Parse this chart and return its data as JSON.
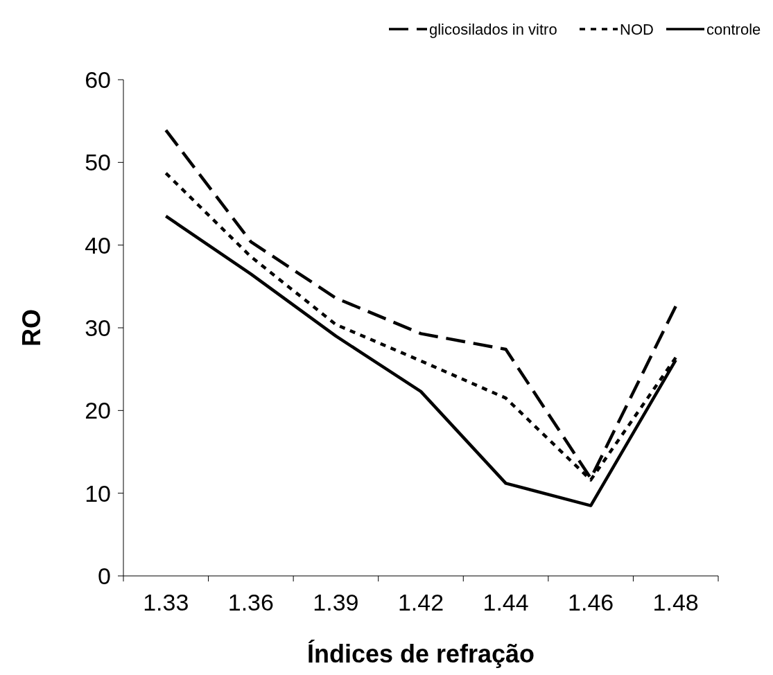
{
  "chart_data": {
    "type": "line",
    "xlabel": "Índices de refração",
    "ylabel": "RO",
    "categories": [
      "1.33",
      "1.36",
      "1.39",
      "1.42",
      "1.44",
      "1.46",
      "1.48"
    ],
    "ylim": [
      0,
      60
    ],
    "yticks": [
      0,
      10,
      20,
      30,
      40,
      50,
      60
    ],
    "grid": false,
    "legend": "top right",
    "marker": "none",
    "series": [
      {
        "name": "glicosilados in vitro",
        "color": "#000000",
        "line_style": "dashed",
        "values": [
          53.9,
          40.4,
          33.6,
          29.3,
          27.4,
          11.8,
          32.6
        ]
      },
      {
        "name": "NOD",
        "color": "#000000",
        "line_style": "dotted",
        "values": [
          48.7,
          38.6,
          30.4,
          26,
          21.5,
          11.6,
          26.4
        ]
      },
      {
        "name": "controle",
        "color": "#000000",
        "line_style": "solid",
        "values": [
          43.5,
          36.5,
          29,
          22.3,
          11.2,
          8.5,
          26.1
        ]
      }
    ]
  }
}
